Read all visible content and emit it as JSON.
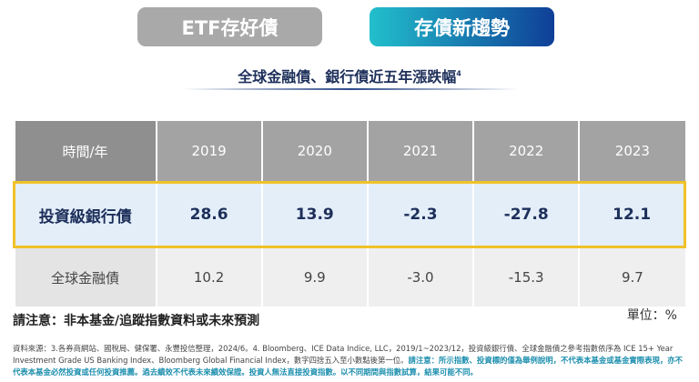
{
  "tabs": [
    {
      "label": "ETF存好債",
      "active": false
    },
    {
      "label": "存債新趨勢",
      "active": true
    }
  ],
  "title": "全球金融債、銀行債近五年漲跌幅",
  "title_sup": "4",
  "table": {
    "header": [
      "時間/年",
      "2019",
      "2020",
      "2021",
      "2022",
      "2023"
    ],
    "rows": [
      {
        "label": "投資級銀行債",
        "values": [
          "28.6",
          "13.9",
          "-2.3",
          "-27.8",
          "12.1"
        ],
        "highlighted": true
      },
      {
        "label": "全球金融債",
        "values": [
          "10.2",
          "9.9",
          "-3.0",
          "-15.3",
          "9.7"
        ],
        "highlighted": false
      }
    ]
  },
  "note": "請注意：非本基金/追蹤指數資料或未來預測",
  "unit": "單位：%",
  "source": "資料來源：3.各券商網站、國稅局、健保署、永豐投信整理，2024/6。4. Bloomberg、ICE Data Indice, LLC，2019/1~2023/12，投資級銀行債、全球金融債之參考指數依序為 ICE 15+ Year Investment Grade US Banking Index、Bloomberg Global Financial Index，數字四捨五入至小數點後第一位。",
  "source_highlight": "請注意：所示指數、投資標的僅為舉例說明，不代表本基金或基金實際表現，亦不代表本基金必然投資或任何投資推薦。過去績效不代表未來績效保證。投資人無法直接投資指數。以不同期間與指數試算，結果可能不同。",
  "colors": {
    "highlight_border": "#f0c22a",
    "active_tab_start": "#22bfcc",
    "active_tab_end": "#0f3f97",
    "inactive_tab": "#a9a9a9"
  }
}
